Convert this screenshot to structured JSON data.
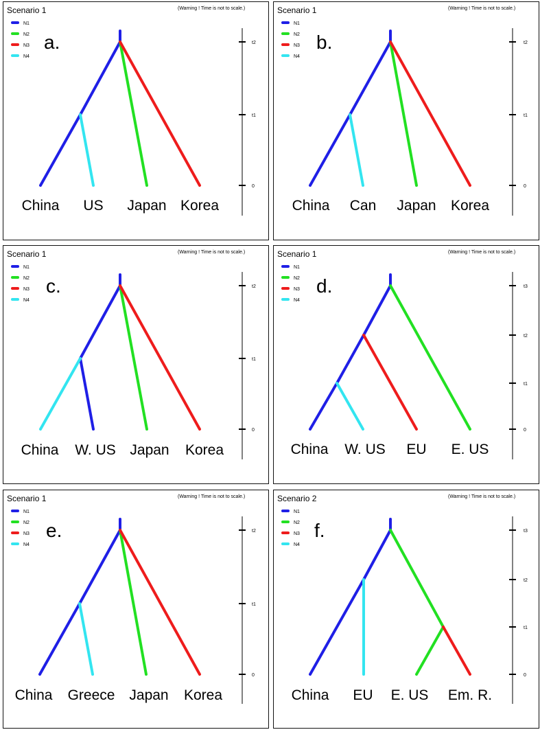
{
  "warning": "(Warning ! Time is not to scale.)",
  "legend": [
    {
      "label": "N1",
      "color": "#1f1fe6"
    },
    {
      "label": "N2",
      "color": "#22e022"
    },
    {
      "label": "N3",
      "color": "#ee1c1c"
    },
    {
      "label": "N4",
      "color": "#33e5f0"
    }
  ],
  "panels": [
    {
      "scenario": "Scenario 1",
      "letter": "a.",
      "ticks": [
        "t2",
        "t1",
        "0"
      ],
      "leaves": [
        "China",
        "US",
        "Japan",
        "Korea"
      ]
    },
    {
      "scenario": "Scenario 1",
      "letter": "b.",
      "ticks": [
        "t2",
        "t1",
        "0"
      ],
      "leaves": [
        "China",
        "Can",
        "Japan",
        "Korea"
      ]
    },
    {
      "scenario": "Scenario 1",
      "letter": "c.",
      "ticks": [
        "t2",
        "t1",
        "0"
      ],
      "leaves": [
        "China",
        "W. US",
        "Japan",
        "Korea"
      ]
    },
    {
      "scenario": "Scenario 1",
      "letter": "d.",
      "ticks": [
        "t3",
        "t2",
        "t1",
        "0"
      ],
      "leaves": [
        "China",
        "W. US",
        "EU",
        "E. US"
      ]
    },
    {
      "scenario": "Scenario 1",
      "letter": "e.",
      "ticks": [
        "t2",
        "t1",
        "0"
      ],
      "leaves": [
        "China",
        "Greece",
        "Japan",
        "Korea"
      ]
    },
    {
      "scenario": "Scenario 2",
      "letter": "f.",
      "ticks": [
        "t3",
        "t2",
        "t1",
        "0"
      ],
      "leaves": [
        "China",
        "EU",
        "E. US",
        "Em. R."
      ]
    }
  ]
}
